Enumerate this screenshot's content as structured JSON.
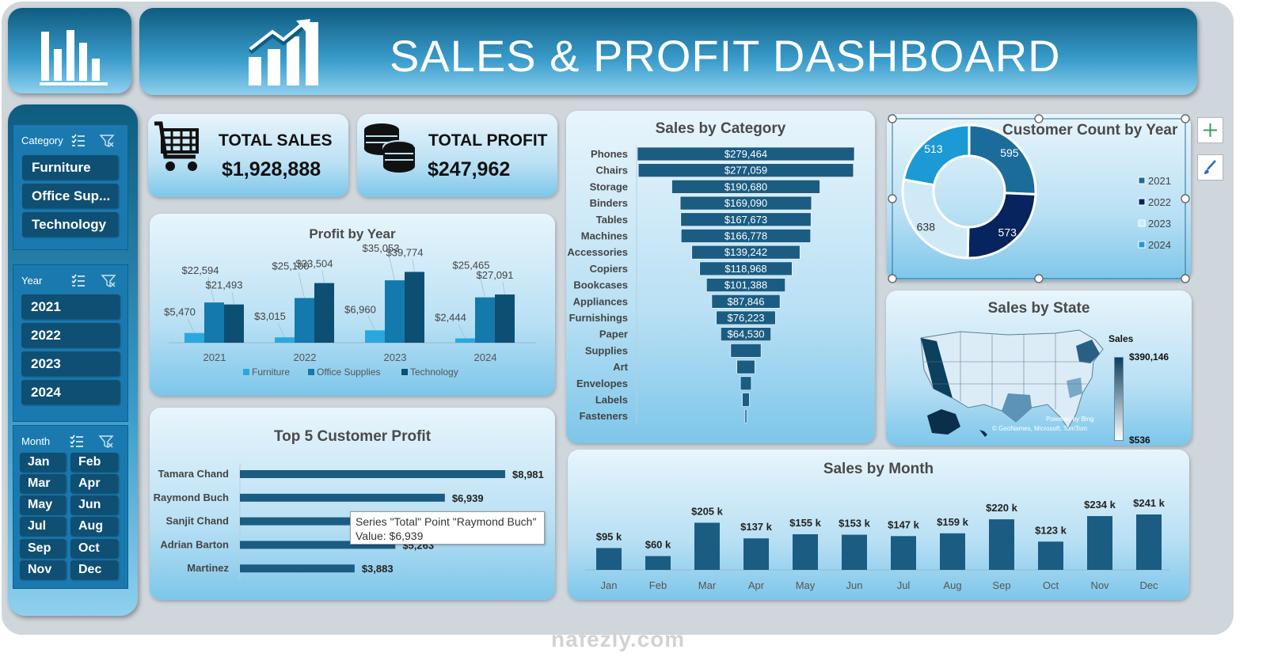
{
  "header": {
    "title": "SALES & PROFIT DASHBOARD"
  },
  "slicers": {
    "category": {
      "label": "Category",
      "items": [
        "Furniture",
        "Office Sup...",
        "Technology"
      ]
    },
    "year": {
      "label": "Year",
      "items": [
        "2021",
        "2022",
        "2023",
        "2024"
      ]
    },
    "month": {
      "label": "Month",
      "items": [
        "Jan",
        "Feb",
        "Mar",
        "Apr",
        "May",
        "Jun",
        "Jul",
        "Aug",
        "Sep",
        "Oct",
        "Nov",
        "Dec"
      ]
    }
  },
  "kpis": {
    "sales": {
      "label": "TOTAL SALES",
      "value": "$1,928,888"
    },
    "profit": {
      "label": "TOTAL PROFIT",
      "value": "$247,962"
    }
  },
  "tooltip": {
    "line1": "Series \"Total\" Point \"Raymond Buch\"",
    "line2": "Value: $6,939"
  },
  "watermark": "nafezly.com",
  "colors": {
    "furniture": "#29a8e0",
    "office": "#1479ad",
    "technology": "#0d4f73",
    "bar": "#1b5c82",
    "y2024": "#87d0f0"
  },
  "chart_data": [
    {
      "type": "bar",
      "title": "Profit by Year",
      "categories": [
        "2021",
        "2022",
        "2023",
        "2024"
      ],
      "series": [
        {
          "name": "Furniture",
          "values": [
            5470,
            3015,
            6960,
            2444
          ],
          "labels": [
            "$5,470",
            "$3,015",
            "$6,960",
            "$2,444"
          ]
        },
        {
          "name": "Office Supplies",
          "values": [
            22594,
            25100,
            35053,
            25465
          ],
          "labels": [
            "$22,594",
            "$25,100",
            "$35,053",
            "$25,465"
          ]
        },
        {
          "name": "Technology",
          "values": [
            21493,
            33504,
            39774,
            27091
          ],
          "labels": [
            "$21,493",
            "$33,504",
            "$39,774",
            "$27,091"
          ]
        }
      ],
      "ylim": [
        0,
        45000
      ]
    },
    {
      "type": "bar",
      "orientation": "horizontal-funnel",
      "title": "Sales by Category",
      "categories": [
        "Phones",
        "Chairs",
        "Storage",
        "Binders",
        "Tables",
        "Machines",
        "Accessories",
        "Copiers",
        "Bookcases",
        "Appliances",
        "Furnishings",
        "Paper",
        "Supplies",
        "Art",
        "Envelopes",
        "Labels",
        "Fasteners"
      ],
      "values": [
        279464,
        277059,
        190680,
        169090,
        167673,
        166778,
        139242,
        118968,
        101388,
        87846,
        76223,
        64530,
        39000,
        23000,
        14000,
        9000,
        2200
      ],
      "labels": [
        "$279,464",
        "$277,059",
        "$190,680",
        "$169,090",
        "$167,673",
        "$166,778",
        "$139,242",
        "$118,968",
        "$101,388",
        "$87,846",
        "$76,223",
        "$64,530",
        "",
        "",
        "",
        "",
        ""
      ]
    },
    {
      "type": "pie",
      "variant": "donut",
      "title": "Customer Count by Year",
      "categories": [
        "2021",
        "2022",
        "2023",
        "2024"
      ],
      "values": [
        595,
        573,
        638,
        513
      ],
      "colors": [
        "#1b6c9a",
        "#08245e",
        "#cfe9f7",
        "#1c9ad6"
      ],
      "legend": "right"
    },
    {
      "type": "map",
      "title": "Sales by State",
      "legend_title": "Sales",
      "max_label": "$390,146",
      "min_label": "$536",
      "credit1": "Powered by Bing",
      "credit2": "© GeoNames, Microsoft, TomTom"
    },
    {
      "type": "bar",
      "title": "Top 5 Customer Profit",
      "orientation": "horizontal",
      "categories": [
        "Tamara Chand",
        "Raymond Buch",
        "Sanjit Chand",
        "Adrian Barton",
        "Martinez"
      ],
      "values": [
        8981,
        6939,
        5757,
        5263,
        3883
      ],
      "labels": [
        "$8,981",
        "$6,939",
        "",
        "$5,263",
        "$3,883"
      ]
    },
    {
      "type": "bar",
      "title": "Sales by Month",
      "categories": [
        "Jan",
        "Feb",
        "Mar",
        "Apr",
        "May",
        "Jun",
        "Jul",
        "Aug",
        "Sep",
        "Oct",
        "Nov",
        "Dec"
      ],
      "values": [
        95,
        60,
        205,
        137,
        155,
        153,
        147,
        159,
        220,
        123,
        234,
        241
      ],
      "labels": [
        "$95 k",
        "$60 k",
        "$205 k",
        "$137 k",
        "$155 k",
        "$153 k",
        "$147 k",
        "$159 k",
        "$220 k",
        "$123 k",
        "$234 k",
        "$241 k"
      ],
      "ylim": [
        0,
        260
      ]
    }
  ]
}
